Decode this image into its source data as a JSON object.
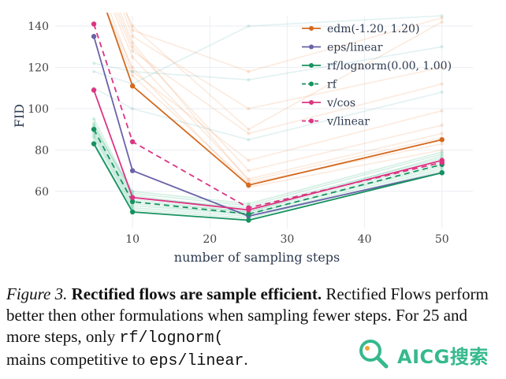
{
  "chart_data": {
    "type": "line",
    "xlabel": "number of sampling steps",
    "ylabel": "FID",
    "xlim": [
      0,
      54
    ],
    "ylim": [
      42,
      145
    ],
    "x_ticks": [
      10,
      20,
      30,
      40,
      50
    ],
    "y_ticks": [
      60,
      80,
      100,
      120,
      140
    ],
    "grid": true,
    "legend_position": "top-right",
    "x": [
      5,
      10,
      25,
      50
    ],
    "series": [
      {
        "name": "edm(-1.20, 1.20)",
        "color": "#d4691e",
        "dash": false,
        "values": [
          165,
          111,
          63,
          85
        ]
      },
      {
        "name": "eps/linear",
        "color": "#6a62a8",
        "dash": false,
        "values": [
          135,
          70,
          48,
          69
        ]
      },
      {
        "name": "rf/lognorm(0.00, 1.00)",
        "color": "#16925f",
        "dash": false,
        "values": [
          83,
          50,
          46,
          69
        ]
      },
      {
        "name": "rf",
        "color": "#16925f",
        "dash": true,
        "values": [
          90,
          55,
          49,
          73
        ]
      },
      {
        "name": "v/cos",
        "color": "#db3482",
        "dash": false,
        "values": [
          109,
          57,
          51,
          75
        ]
      },
      {
        "name": "v/linear",
        "color": "#db3482",
        "dash": true,
        "values": [
          141,
          84,
          52,
          74
        ]
      }
    ],
    "background_series": {
      "orange": [
        [
          180,
          140,
          90,
          142
        ],
        [
          175,
          130,
          70,
          92
        ],
        [
          170,
          125,
          66,
          88
        ],
        [
          160,
          120,
          62,
          80
        ],
        [
          190,
          138,
          118,
          144
        ],
        [
          172,
          128,
          88,
          112
        ],
        [
          168,
          118,
          75,
          99
        ],
        [
          185,
          135,
          100,
          120
        ],
        [
          178,
          132,
          65,
          86
        ],
        [
          162,
          116,
          64,
          83
        ]
      ],
      "teal": [
        [
          122,
          118,
          114,
          130
        ],
        [
          110,
          100,
          85,
          108
        ],
        [
          118,
          112,
          140,
          145
        ]
      ],
      "green": [
        [
          92,
          57,
          52,
          76
        ],
        [
          88,
          54,
          49,
          73
        ],
        [
          86,
          52,
          48,
          71
        ],
        [
          95,
          59,
          53,
          78
        ],
        [
          84,
          51,
          47,
          70
        ],
        [
          90,
          56,
          50,
          74
        ],
        [
          93,
          58,
          51,
          75
        ],
        [
          87,
          53,
          49,
          72
        ],
        [
          89,
          55,
          50,
          77
        ],
        [
          91,
          60,
          54,
          79
        ]
      ]
    }
  },
  "caption": {
    "label": "Figure 3.",
    "title": "Rectified flows are sample efficient.",
    "body_1": "Rectified Flows perform better then other formulations when sampling fewer steps. For 25 and more steps, only",
    "code_1": "rf/lognorm(",
    "body_2": "mains competitive to",
    "code_2": "eps/linear",
    "end": "."
  },
  "watermark": {
    "text": "AICG搜索"
  }
}
